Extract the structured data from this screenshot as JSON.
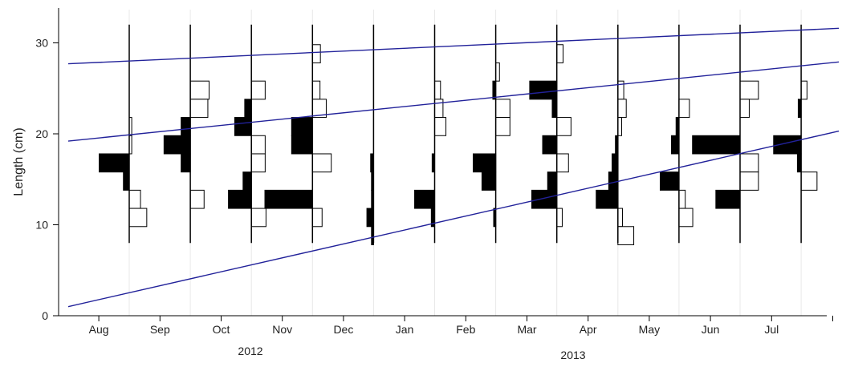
{
  "chart_data": {
    "type": "length-frequency histogram with growth curves",
    "title": "",
    "ylabel": "Length (cm)",
    "xlabel": "",
    "ylim": [
      0,
      34
    ],
    "yticks": [
      0,
      10,
      20,
      30
    ],
    "month_labels": [
      "Aug",
      "Sep",
      "Oct",
      "Nov",
      "Dec",
      "Jan",
      "Feb",
      "Mar",
      "Apr",
      "May",
      "Jun",
      "Jul"
    ],
    "year_labels": [
      "2012",
      "2013"
    ],
    "bin_width_cm": 2,
    "samples": [
      {
        "bars": [
          [
            20.8,
            0.06
          ],
          [
            18.8,
            0.06
          ],
          [
            16.8,
            -0.72
          ],
          [
            14.8,
            -0.14
          ],
          [
            12.8,
            0.27
          ],
          [
            10.8,
            0.42
          ]
        ]
      },
      {
        "bars": [
          [
            24.8,
            0.45
          ],
          [
            22.8,
            0.42
          ],
          [
            20.8,
            -0.22
          ],
          [
            18.8,
            -0.63
          ],
          [
            16.8,
            -0.22
          ],
          [
            12.8,
            0.33
          ]
        ]
      },
      {
        "bars": [
          [
            24.8,
            0.33
          ],
          [
            22.8,
            -0.16
          ],
          [
            20.8,
            -0.4
          ],
          [
            18.8,
            0.33
          ],
          [
            16.8,
            0.33
          ],
          [
            14.8,
            -0.2
          ],
          [
            12.8,
            -0.55
          ],
          [
            10.8,
            0.35
          ]
        ]
      },
      {
        "bars": [
          [
            28.8,
            0.19
          ],
          [
            24.8,
            0.18
          ],
          [
            22.8,
            0.33
          ],
          [
            20.8,
            -0.5
          ],
          [
            18.8,
            -0.5
          ],
          [
            16.8,
            0.45
          ],
          [
            12.8,
            -1.14
          ],
          [
            10.8,
            0.23
          ]
        ]
      },
      {
        "bars": [
          [
            16.8,
            -0.07
          ],
          [
            14.8,
            -0.05
          ],
          [
            12.8,
            -0.05
          ],
          [
            10.8,
            -0.16
          ],
          [
            8.8,
            -0.05
          ]
        ]
      },
      {
        "bars": [
          [
            24.8,
            0.14
          ],
          [
            22.8,
            0.2
          ],
          [
            20.8,
            0.27
          ],
          [
            16.8,
            -0.06
          ],
          [
            12.8,
            -0.48
          ],
          [
            10.8,
            -0.08
          ]
        ]
      },
      {
        "bars": [
          [
            26.8,
            0.09
          ],
          [
            24.8,
            -0.07
          ],
          [
            22.8,
            0.34
          ],
          [
            20.8,
            0.34
          ],
          [
            16.8,
            -0.54
          ],
          [
            14.8,
            -0.33
          ],
          [
            10.8,
            -0.05
          ]
        ]
      },
      {
        "bars": [
          [
            28.8,
            0.15
          ],
          [
            24.8,
            -0.65
          ],
          [
            22.8,
            -0.11
          ],
          [
            20.8,
            0.34
          ],
          [
            18.8,
            -0.34
          ],
          [
            16.8,
            0.28
          ],
          [
            14.8,
            -0.22
          ],
          [
            12.8,
            -0.6
          ],
          [
            10.8,
            0.13
          ]
        ]
      },
      {
        "bars": [
          [
            24.8,
            0.14
          ],
          [
            22.8,
            0.2
          ],
          [
            20.8,
            0.09
          ],
          [
            18.8,
            -0.06
          ],
          [
            16.8,
            -0.14
          ],
          [
            14.8,
            -0.22
          ],
          [
            12.8,
            -0.52
          ],
          [
            10.8,
            0.11
          ],
          [
            8.8,
            0.38
          ]
        ]
      },
      {
        "bars": [
          [
            22.8,
            0.25
          ],
          [
            20.8,
            -0.07
          ],
          [
            18.8,
            -0.18
          ],
          [
            14.8,
            -0.45
          ],
          [
            12.8,
            0.15
          ],
          [
            10.8,
            0.33
          ]
        ]
      },
      {
        "bars": [
          [
            24.8,
            0.44
          ],
          [
            22.8,
            0.22
          ],
          [
            18.8,
            -1.14
          ],
          [
            16.8,
            0.44
          ],
          [
            14.8,
            0.44
          ],
          [
            12.8,
            -0.58
          ]
        ]
      },
      {
        "bars": [
          [
            24.8,
            0.14
          ],
          [
            22.8,
            -0.07
          ],
          [
            18.8,
            -0.66
          ],
          [
            16.8,
            -0.09
          ],
          [
            14.8,
            0.38
          ]
        ]
      }
    ],
    "growth_curves": [
      {
        "x": [
          0,
          12.6
        ],
        "y": [
          27.7,
          31.6
        ]
      },
      {
        "x": [
          0,
          12.6
        ],
        "y": [
          19.2,
          27.9
        ]
      },
      {
        "x": [
          0,
          12.6
        ],
        "y": [
          1.0,
          20.3
        ]
      }
    ],
    "colors": {
      "curve": "#22229a",
      "filled_bar": "#000000",
      "open_bar": "#ffffff",
      "axis": "#000000",
      "grid": "#e8e8e8"
    }
  }
}
